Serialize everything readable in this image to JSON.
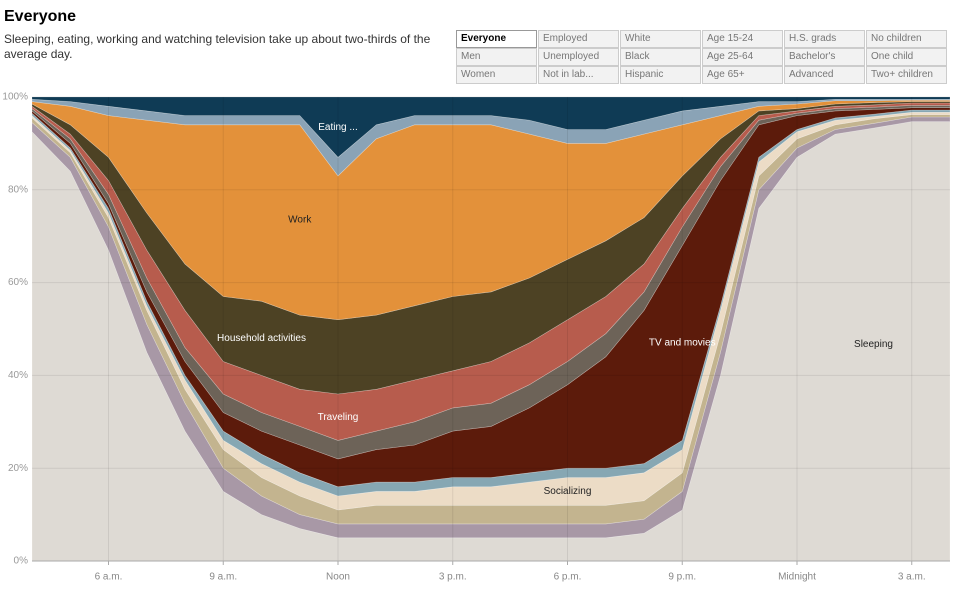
{
  "chart_data": {
    "type": "stacked-area",
    "title": "Everyone",
    "subtitle": "Sleeping, eating, working and watching television take up about two-thirds of the average day.",
    "filters": [
      [
        "Everyone",
        "Employed",
        "White",
        "Age 15-24",
        "H.S. grads",
        "No children"
      ],
      [
        "Men",
        "Unemployed",
        "Black",
        "Age 25-64",
        "Bachelor's",
        "One child"
      ],
      [
        "Women",
        "Not in lab...",
        "Hispanic",
        "Age 65+",
        "Advanced",
        "Two+ children"
      ]
    ],
    "selected": "Everyone",
    "x": [
      4,
      5,
      6,
      7,
      8,
      9,
      10,
      11,
      12,
      13,
      14,
      15,
      16,
      17,
      18,
      19,
      20,
      21,
      22,
      23,
      24,
      25,
      26,
      27,
      28
    ],
    "xlim": [
      4,
      28
    ],
    "xticks": [
      {
        "value": 6,
        "label": "6 a.m."
      },
      {
        "value": 9,
        "label": "9 a.m."
      },
      {
        "value": 12,
        "label": "Noon"
      },
      {
        "value": 15,
        "label": "3 p.m."
      },
      {
        "value": 18,
        "label": "6 p.m."
      },
      {
        "value": 21,
        "label": "9 p.m."
      },
      {
        "value": 24,
        "label": "Midnight"
      },
      {
        "value": 27,
        "label": "3 a.m."
      }
    ],
    "ylim": [
      0,
      100
    ],
    "yticks": [
      {
        "value": 0,
        "label": "0%"
      },
      {
        "value": 20,
        "label": "20%"
      },
      {
        "value": 40,
        "label": "40%"
      },
      {
        "value": 60,
        "label": "60%"
      },
      {
        "value": 80,
        "label": "80%"
      },
      {
        "value": 100,
        "label": "100%"
      }
    ],
    "grid": true,
    "series": [
      {
        "name": "Sleeping",
        "color": "#dedad4",
        "values": [
          92.5,
          84,
          67,
          45,
          28,
          15,
          10,
          7,
          5,
          5,
          5,
          5,
          5,
          5,
          5,
          5,
          6,
          11,
          40,
          76,
          87,
          92,
          93.3,
          94.7,
          94.7
        ]
      },
      {
        "color": "#a898a6",
        "values": [
          2,
          3,
          5,
          6,
          6,
          5,
          4,
          3,
          3,
          3,
          3,
          3,
          3,
          3,
          3,
          3,
          3,
          4,
          5,
          4,
          2,
          1,
          1,
          1,
          1
        ]
      },
      {
        "color": "#c3b48f",
        "values": [
          1,
          1,
          2,
          3,
          3,
          4,
          4,
          4,
          3,
          4,
          4,
          4,
          4,
          4,
          4,
          4,
          4,
          4,
          4,
          3,
          2,
          1,
          1,
          0.5,
          0.5
        ]
      },
      {
        "name": "Socializing",
        "color": "#ecdcc6",
        "values": [
          0.5,
          0.5,
          1,
          1,
          2,
          2,
          3,
          3,
          3,
          3,
          3,
          4,
          4,
          5,
          6,
          6,
          6,
          5,
          5,
          3,
          1.5,
          1,
          0.5,
          0.5,
          0.5
        ]
      },
      {
        "color": "#86a7b3",
        "values": [
          0.5,
          0.5,
          1,
          1,
          1,
          2,
          2,
          2,
          2,
          2,
          2,
          2,
          2,
          2,
          2,
          2,
          2,
          2,
          1,
          1,
          0.5,
          0.5,
          0.5,
          0.5,
          0.5
        ]
      },
      {
        "name": "TV and movies",
        "color": "#5c1b0b",
        "values": [
          0.5,
          1,
          1,
          2,
          3,
          4,
          5,
          6,
          6,
          7,
          8,
          10,
          11,
          14,
          18,
          24,
          33,
          42,
          27,
          7,
          3,
          1.5,
          1,
          0.5,
          0.5
        ]
      },
      {
        "color": "#6d6358",
        "values": [
          0.5,
          1,
          2,
          3,
          3,
          4,
          4,
          4,
          4,
          4,
          5,
          5,
          5,
          5,
          5,
          5,
          4,
          4,
          3,
          1,
          0.5,
          0.5,
          0.5,
          0.5,
          0.5
        ]
      },
      {
        "name": "Traveling",
        "color": "#b75c4d",
        "values": [
          0.5,
          1,
          3,
          6,
          8,
          7,
          8,
          8,
          10,
          9,
          9,
          8,
          9,
          9,
          9,
          8,
          6,
          4,
          2,
          1,
          0.5,
          0.5,
          0.5,
          0.5,
          0.5
        ]
      },
      {
        "name": "Household activities",
        "color": "#4d4224",
        "values": [
          0.5,
          2,
          5,
          8,
          10,
          14,
          16,
          16,
          16,
          16,
          16,
          16,
          15,
          14,
          13,
          12,
          10,
          7,
          4,
          1,
          0.5,
          0.5,
          0.5,
          0.3,
          0.3
        ]
      },
      {
        "name": "Work",
        "color": "#e3913a",
        "values": [
          0.5,
          4,
          9,
          20,
          30,
          37,
          38,
          41,
          31,
          38,
          39,
          37,
          36,
          31,
          25,
          21,
          18,
          11,
          5,
          1,
          1,
          0.7,
          0.4,
          0.3,
          0.3
        ]
      },
      {
        "color": "#8aa3b6",
        "values": [
          0.5,
          1,
          2,
          2,
          2,
          2,
          2,
          2,
          4,
          3,
          2,
          2,
          2,
          3,
          3,
          3,
          3,
          3,
          2,
          1,
          0.5,
          0.3,
          0.3,
          0.2,
          0.2
        ]
      },
      {
        "name": "Eating ...",
        "color": "#0f3b55",
        "values": [
          0.5,
          1,
          2,
          3,
          4,
          4,
          4,
          4,
          13,
          6,
          4,
          4,
          4,
          5,
          7,
          7,
          5,
          3,
          2,
          1,
          1,
          0.5,
          0.5,
          0.5,
          0.5
        ]
      }
    ]
  }
}
